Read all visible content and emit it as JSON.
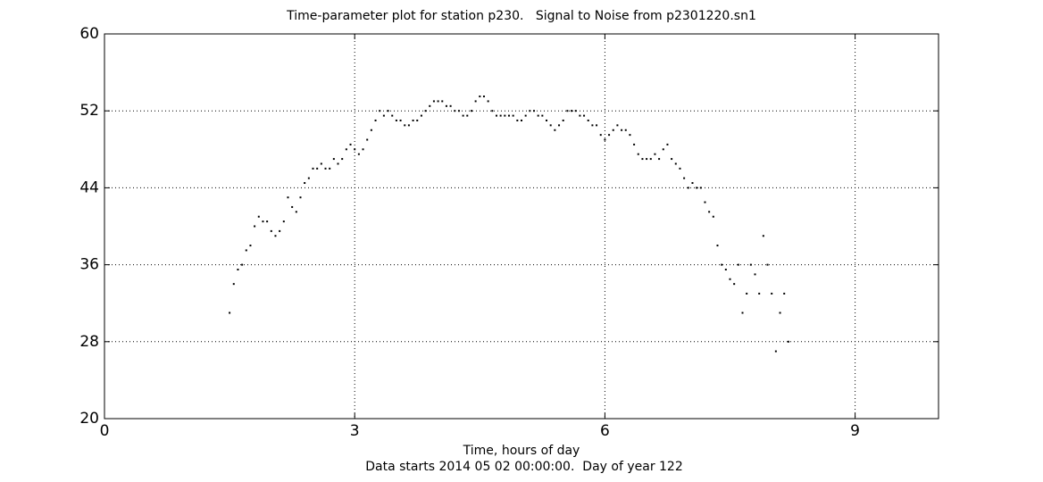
{
  "chart_data": {
    "type": "scatter",
    "title": "Time-parameter plot for station p230.   Signal to Noise from p2301220.sn1",
    "xlabel": "Time, hours of day",
    "note": "Data starts 2014 05 02 00:00:00.  Day of year 122",
    "color": "#000000",
    "grid": true,
    "xlim": [
      0,
      10
    ],
    "xticks": [
      0,
      3,
      6,
      9
    ],
    "ylim": [
      20,
      60
    ],
    "yticks": [
      20,
      28,
      36,
      44,
      52,
      60
    ],
    "x": [
      1.5,
      1.55,
      1.6,
      1.65,
      1.7,
      1.75,
      1.8,
      1.85,
      1.9,
      1.95,
      2.0,
      2.05,
      2.1,
      2.15,
      2.2,
      2.25,
      2.3,
      2.35,
      2.4,
      2.45,
      2.5,
      2.55,
      2.6,
      2.65,
      2.7,
      2.75,
      2.8,
      2.85,
      2.9,
      2.95,
      3.0,
      3.05,
      3.1,
      3.15,
      3.2,
      3.25,
      3.3,
      3.35,
      3.4,
      3.45,
      3.5,
      3.55,
      3.6,
      3.65,
      3.7,
      3.75,
      3.8,
      3.85,
      3.9,
      3.95,
      4.0,
      4.05,
      4.1,
      4.15,
      4.2,
      4.25,
      4.3,
      4.35,
      4.4,
      4.45,
      4.5,
      4.55,
      4.6,
      4.65,
      4.7,
      4.75,
      4.8,
      4.85,
      4.9,
      4.95,
      5.0,
      5.05,
      5.1,
      5.15,
      5.2,
      5.25,
      5.3,
      5.35,
      5.4,
      5.45,
      5.5,
      5.55,
      5.6,
      5.65,
      5.7,
      5.75,
      5.8,
      5.85,
      5.9,
      5.95,
      6.0,
      6.05,
      6.1,
      6.15,
      6.2,
      6.25,
      6.3,
      6.35,
      6.4,
      6.45,
      6.5,
      6.55,
      6.6,
      6.65,
      6.7,
      6.75,
      6.8,
      6.85,
      6.9,
      6.95,
      7.0,
      7.05,
      7.1,
      7.15,
      7.2,
      7.25,
      7.3,
      7.35,
      7.4,
      7.45,
      7.5,
      7.55,
      7.6,
      7.65,
      7.7,
      7.75,
      7.8,
      7.85,
      7.9,
      7.95,
      8.0,
      8.05,
      8.1,
      8.15,
      8.2
    ],
    "values": [
      31,
      34,
      35.5,
      36,
      37.5,
      38,
      40,
      41,
      40.5,
      40.5,
      39.5,
      39,
      39.5,
      40.5,
      43,
      42,
      41.5,
      43,
      44.5,
      45,
      46,
      46,
      46.5,
      46,
      46,
      47,
      46.5,
      47,
      48,
      48.5,
      48,
      47.5,
      48,
      49,
      50,
      51,
      52,
      51.5,
      52,
      51.5,
      51,
      51,
      50.5,
      50.5,
      51,
      51,
      51.5,
      52,
      52.5,
      53,
      53,
      53,
      52.5,
      52.5,
      52,
      52,
      51.5,
      51.5,
      52,
      53,
      53.5,
      53.5,
      53,
      52,
      51.5,
      51.5,
      51.5,
      51.5,
      51.5,
      51,
      51,
      51.5,
      52,
      52,
      51.5,
      51.5,
      51,
      50.5,
      50,
      50.5,
      51,
      52,
      52,
      52,
      51.5,
      51.5,
      51,
      50.5,
      50.5,
      49.5,
      49,
      49.5,
      50,
      50.5,
      50,
      50,
      49.5,
      48.5,
      47.5,
      47,
      47,
      47,
      47.5,
      47,
      48,
      48.5,
      47,
      46.5,
      46,
      45,
      44,
      44.5,
      44,
      44,
      42.5,
      41.5,
      41,
      38,
      36,
      35.5,
      34.5,
      34,
      36,
      31,
      33,
      36,
      35,
      33,
      39,
      36,
      33,
      27,
      31,
      33,
      28
    ]
  }
}
